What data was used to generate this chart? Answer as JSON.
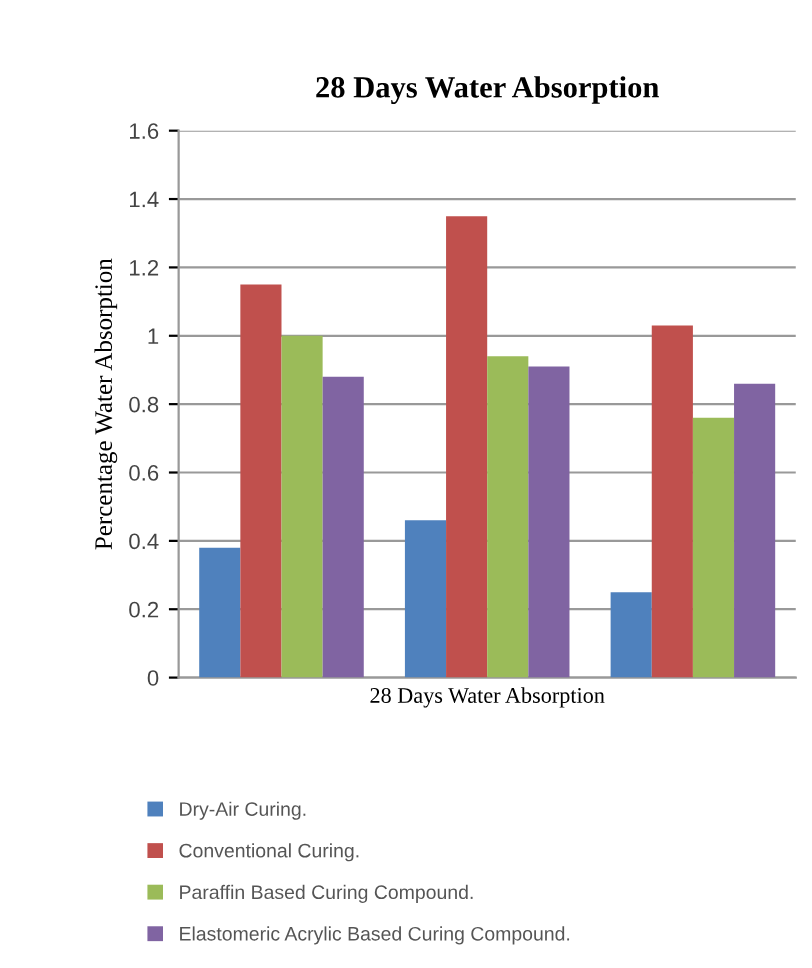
{
  "chart_data": {
    "type": "bar",
    "title": "28 Days Water Absorption",
    "ylabel": "Percentage Water Absorption",
    "categories": [
      null,
      "28 Days Water Absorption",
      null
    ],
    "series": [
      {
        "name": "Dry-Air Curing.",
        "color": "#4f81bd",
        "values": [
          0.38,
          0.46,
          0.25
        ]
      },
      {
        "name": "Conventional Curing.",
        "color": "#c0504d",
        "values": [
          1.15,
          1.35,
          1.03
        ]
      },
      {
        "name": "Paraffin Based Curing Compound.",
        "color": "#9bbb59",
        "values": [
          1.0,
          0.94,
          0.76
        ]
      },
      {
        "name": "Elastomeric Acrylic Based Curing Compound.",
        "color": "#8064a2",
        "values": [
          0.88,
          0.91,
          0.86
        ]
      }
    ],
    "ylim": [
      0,
      1.6
    ],
    "yticks": [
      0,
      0.2,
      0.4,
      0.6,
      0.8,
      1,
      1.2,
      1.4,
      1.6
    ],
    "grid": "y",
    "legend": "bottom"
  }
}
